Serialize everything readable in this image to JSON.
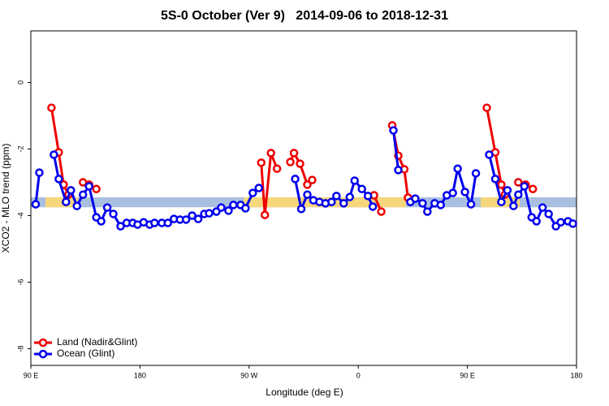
{
  "chart_data": {
    "type": "line",
    "title": "5S-0 October (Ver 9)   2014-09-06 to 2018-12-31",
    "xlabel": "Longitude (deg E)",
    "ylabel": "XCO2 - MLO trend (ppm)",
    "xlim": [
      90,
      540
    ],
    "ylim": [
      -8.5,
      1.55
    ],
    "xticks": [
      {
        "value": 90,
        "label": "90 E"
      },
      {
        "value": 180,
        "label": "180"
      },
      {
        "value": 270,
        "label": "90 W"
      },
      {
        "value": 360,
        "label": "0"
      },
      {
        "value": 450,
        "label": "90 E"
      },
      {
        "value": 540,
        "label": "180"
      }
    ],
    "yticks": [
      0,
      -2,
      -4,
      -6,
      -8
    ],
    "reference_band": [
      -3.75,
      -3.45
    ],
    "band_color": "#a9bfdf",
    "legend": "bottom-left",
    "series": [
      {
        "name": "Land (Nadir&Glint)",
        "color": "#ee0000",
        "x": [
          107,
          113,
          117,
          121,
          null,
          133,
          138,
          144,
          null,
          280,
          283,
          288,
          293,
          null,
          304,
          307,
          312,
          318,
          322,
          null,
          373,
          379,
          null,
          388,
          393,
          398,
          401,
          null,
          466,
          473,
          478,
          481,
          null,
          492,
          498,
          504
        ],
        "values": [
          -0.76,
          -2.1,
          -3.07,
          -3.37,
          null,
          -3.0,
          -3.07,
          -3.2,
          null,
          -2.41,
          -3.98,
          -2.12,
          -2.59,
          null,
          -2.39,
          -2.12,
          -2.44,
          -3.07,
          -2.93,
          null,
          -3.39,
          -3.88,
          null,
          -1.29,
          -2.2,
          -2.61,
          -3.46,
          null,
          -0.76,
          -2.1,
          -3.07,
          -3.37,
          null,
          -3.0,
          -3.07,
          -3.2
        ]
      },
      {
        "name": "Ocean (Glint)",
        "color": "#0000ee",
        "x": [
          94,
          97,
          null,
          109,
          113,
          119,
          123,
          128,
          133,
          138,
          144,
          148,
          153,
          158,
          164,
          169,
          174,
          178,
          183,
          188,
          192,
          198,
          203,
          208,
          213,
          218,
          223,
          228,
          233,
          237,
          243,
          247,
          253,
          257,
          263,
          267,
          273,
          278,
          null,
          308,
          313,
          318,
          323,
          328,
          333,
          338,
          342,
          348,
          353,
          357,
          363,
          368,
          372,
          null,
          389,
          393,
          null,
          403,
          407,
          413,
          417,
          423,
          428,
          433,
          438,
          442,
          448,
          453,
          457,
          null,
          468,
          473,
          478,
          483,
          488,
          492,
          497,
          503,
          507,
          512,
          517,
          523,
          527,
          533,
          537
        ],
        "values": [
          -3.66,
          -2.71,
          null,
          -2.17,
          -2.9,
          -3.59,
          -3.24,
          -3.71,
          -3.37,
          -3.12,
          -4.05,
          -4.17,
          -3.76,
          -3.95,
          -4.32,
          -4.22,
          -4.22,
          -4.27,
          -4.2,
          -4.27,
          -4.22,
          -4.22,
          -4.22,
          -4.1,
          -4.12,
          -4.12,
          -4.0,
          -4.1,
          -3.95,
          -3.93,
          -3.88,
          -3.76,
          -3.85,
          -3.68,
          -3.68,
          -3.78,
          -3.32,
          -3.17,
          null,
          -2.9,
          -3.8,
          -3.37,
          -3.54,
          -3.59,
          -3.63,
          -3.59,
          -3.41,
          -3.63,
          -3.44,
          -2.95,
          -3.2,
          -3.41,
          -3.73,
          null,
          -1.44,
          -2.63,
          null,
          -3.59,
          -3.49,
          -3.63,
          -3.88,
          -3.63,
          -3.68,
          -3.39,
          -3.32,
          -2.59,
          -3.29,
          -3.66,
          -2.73,
          null,
          -2.17,
          -2.9,
          -3.59,
          -3.24,
          -3.71,
          -3.37,
          -3.12,
          -4.05,
          -4.17,
          -3.76,
          -3.95,
          -4.32,
          -4.2,
          -4.17,
          -4.24
        ]
      }
    ]
  }
}
